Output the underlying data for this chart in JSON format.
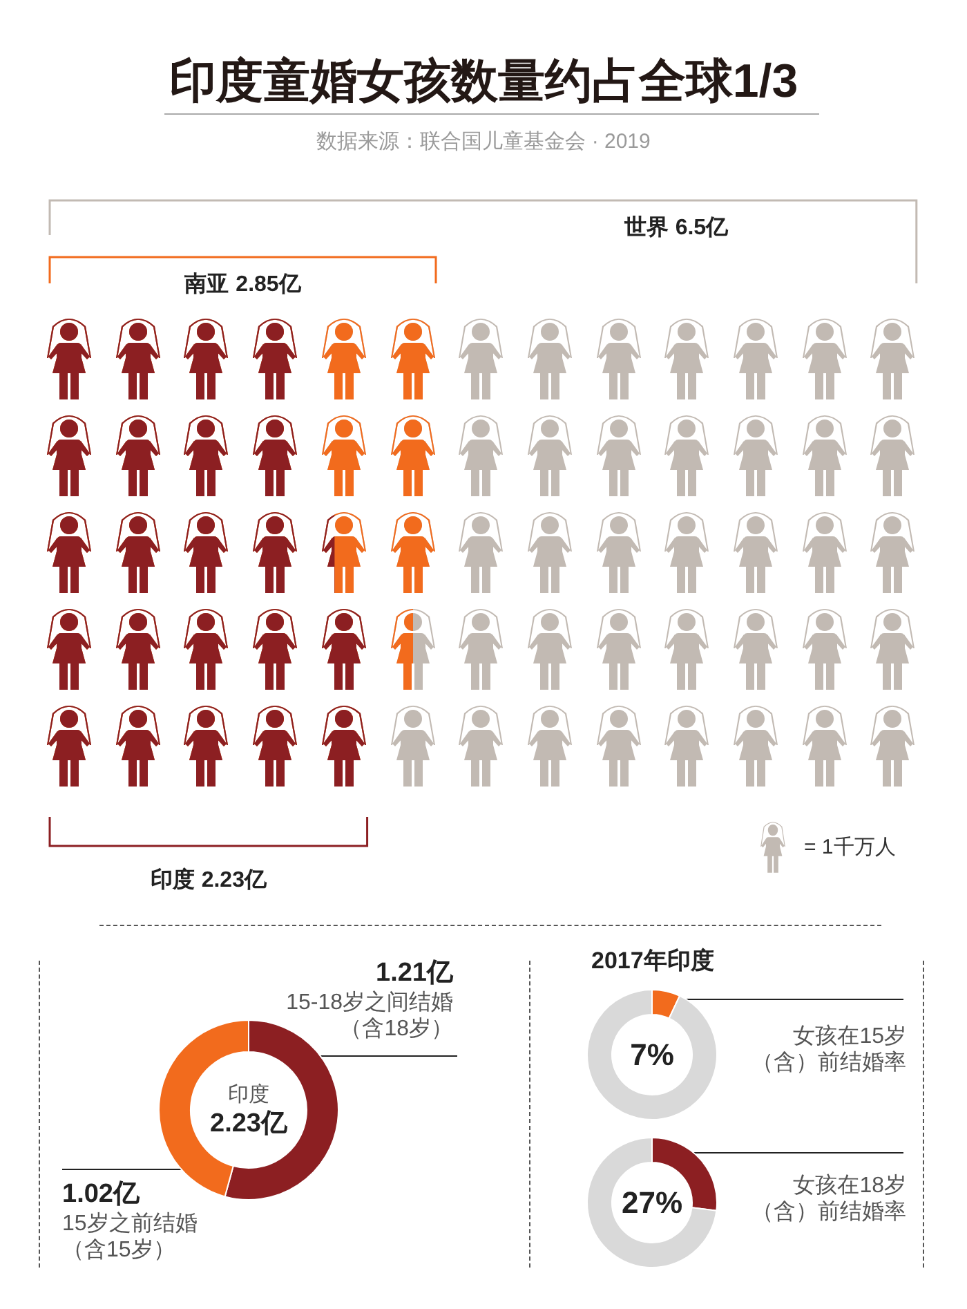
{
  "chart_data": [
    {
      "type": "other",
      "title": "印度童婚女孩数量约占全球1/3",
      "subtitle": "数据来源：联合国儿童基金会 · 2019",
      "categories": [
        "世界",
        "南亚",
        "印度"
      ],
      "values": [
        6.5,
        2.85,
        2.23
      ],
      "value_labels": [
        "6.5亿",
        "2.85亿",
        "2.23亿"
      ],
      "colors": [
        "#c2bab3",
        "#f26b1d",
        "#8c1f22"
      ],
      "annotations": [
        "= 1千万人"
      ]
    },
    {
      "type": "donut",
      "title": "印度",
      "subtitle": "2.23亿",
      "categories": [
        "15-18岁之间结婚（含18岁）",
        "15岁之前结婚（含15岁）"
      ],
      "values": [
        1.21,
        1.02
      ],
      "value_labels": [
        "1.21亿",
        "1.02亿"
      ],
      "colors": [
        "#8c1f22",
        "#f26b1d"
      ]
    },
    {
      "type": "donut",
      "title": "2017年印度",
      "categories": [
        "女孩在15岁（含）前结婚率",
        null
      ],
      "values": [
        7,
        93
      ],
      "value_labels": [
        "7%",
        null
      ],
      "colors": [
        "#f26b1d",
        "#d9d9d9"
      ]
    },
    {
      "type": "donut",
      "categories": [
        "女孩在18岁（含）前结婚率",
        null
      ],
      "values": [
        27,
        73
      ],
      "value_labels": [
        "27%",
        null
      ],
      "colors": [
        "#8c1f22",
        "#d9d9d9"
      ]
    }
  ]
}
